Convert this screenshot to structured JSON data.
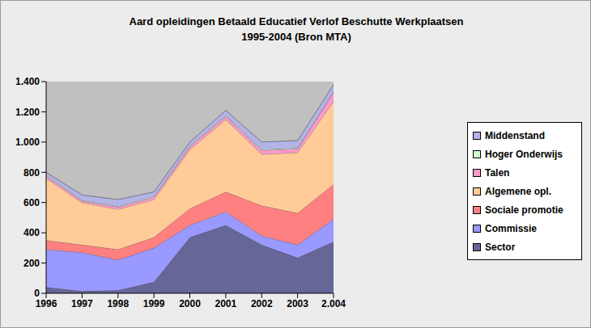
{
  "chart_data": {
    "type": "area",
    "title": "Aard opleidingen Betaald Educatief Verlof Beschutte Werkplaatsen",
    "subtitle": "1995-2004 (Bron MTA)",
    "stacked": true,
    "grid": false,
    "legend": "right",
    "categories": [
      "1996",
      "1997",
      "1998",
      "1999",
      "2000",
      "2001",
      "2002",
      "2003",
      "2.004"
    ],
    "ylim": [
      0,
      1400
    ],
    "yticks": [
      0,
      200,
      400,
      600,
      800,
      {
        "value": 1000,
        "label": "1.000"
      },
      {
        "value": 1200,
        "label": "1.200"
      },
      {
        "value": 1400,
        "label": "1.400"
      }
    ],
    "series": [
      {
        "name": "Sector",
        "color": "#666699",
        "values": [
          40,
          15,
          20,
          75,
          370,
          450,
          320,
          235,
          340
        ]
      },
      {
        "name": "Commissie",
        "color": "#9999ff",
        "values": [
          250,
          255,
          200,
          225,
          80,
          90,
          60,
          85,
          150
        ]
      },
      {
        "name": "Sociale promotie",
        "color": "#ff8080",
        "values": [
          60,
          50,
          70,
          70,
          110,
          130,
          200,
          210,
          230
        ]
      },
      {
        "name": "Algemene opl.",
        "color": "#ffcc99",
        "values": [
          410,
          280,
          265,
          250,
          390,
          480,
          340,
          400,
          550
        ]
      },
      {
        "name": "Talen",
        "color": "#ff99cc",
        "values": [
          15,
          10,
          15,
          15,
          20,
          20,
          25,
          25,
          60
        ]
      },
      {
        "name": "Hoger Onderwijs",
        "color": "#ccffcc",
        "values": [
          5,
          5,
          5,
          5,
          5,
          5,
          5,
          5,
          5
        ]
      },
      {
        "name": "Middenstand",
        "color": "#b3b3e6",
        "values": [
          20,
          35,
          45,
          30,
          25,
          35,
          50,
          50,
          45
        ]
      }
    ]
  }
}
